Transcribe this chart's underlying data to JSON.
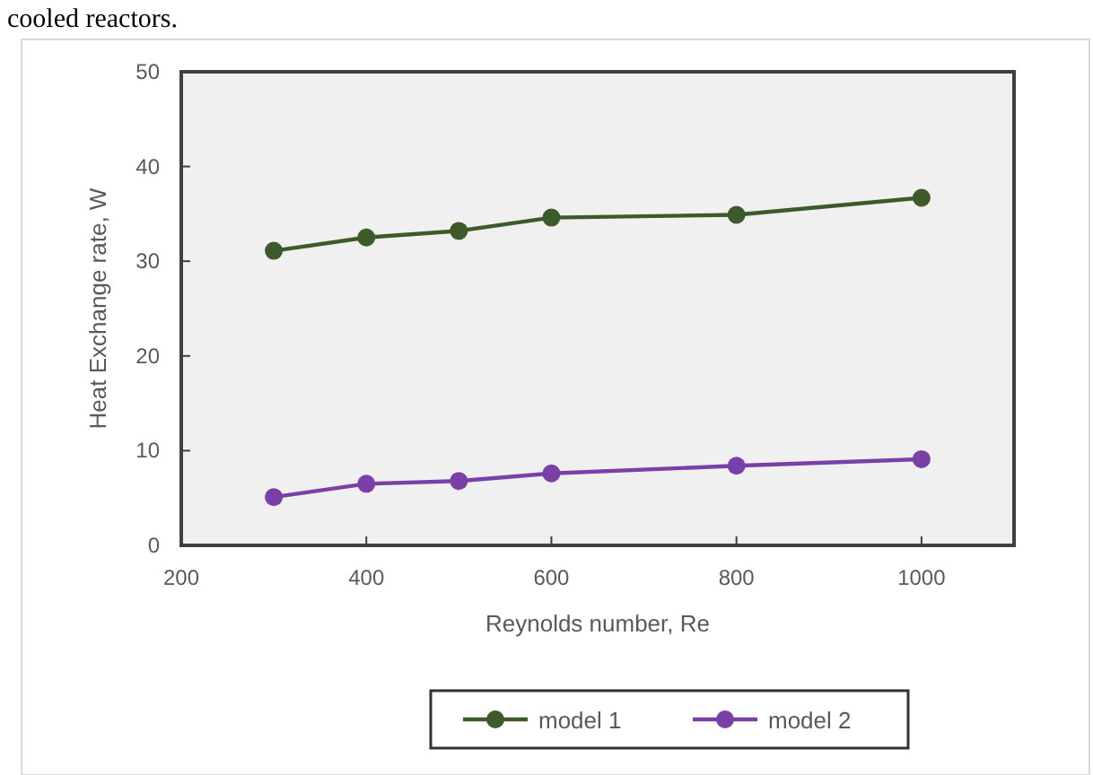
{
  "chart_data": {
    "type": "line",
    "xlabel": "Reynolds number, Re",
    "ylabel": "Heat Exchange rate, W",
    "annotations": [
      "cooled reactors."
    ],
    "x": [
      300,
      400,
      500,
      600,
      800,
      1000
    ],
    "series": [
      {
        "name": "model 1",
        "color": "#3d5a2a",
        "values": [
          31.1,
          32.5,
          33.2,
          34.6,
          34.9,
          36.7
        ]
      },
      {
        "name": "model 2",
        "color": "#7b3fa8",
        "values": [
          5.1,
          6.5,
          6.8,
          7.6,
          8.4,
          9.1
        ]
      }
    ],
    "xlim": [
      200,
      1100
    ],
    "xticks": [
      200,
      400,
      600,
      800,
      1000
    ],
    "ylim": [
      0,
      50
    ],
    "yticks": [
      0,
      10,
      20,
      30,
      40,
      50
    ],
    "grid": false,
    "legend": "bottom",
    "marker": "circle",
    "line_style": "solid"
  }
}
